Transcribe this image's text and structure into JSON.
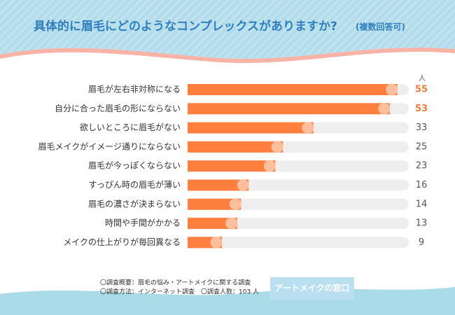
{
  "chart_data": {
    "type": "hbar",
    "title": "具体的に眉毛にどのようなコンプレックスがありますか?",
    "subtitle": "(複数回答可)",
    "unit": "人",
    "categories": [
      "眉毛が左右非対称になる",
      "自分に合った眉毛の形にならない",
      "欲しいところに眉毛がない",
      "眉毛メイクがイメージ通りにならない",
      "眉毛が今っぽくならない",
      "すっぴん時の眉毛が薄い",
      "眉毛の濃さが決まらない",
      "時間や手間がかかる",
      "メイクの仕上がりが毎回異なる"
    ],
    "values": [
      55,
      53,
      33,
      25,
      23,
      16,
      14,
      13,
      9
    ],
    "value_label_colors": [
      "#f07a3a",
      "#f07a3a",
      "#555555",
      "#555555",
      "#555555",
      "#555555",
      "#555555",
      "#555555",
      "#555555"
    ],
    "color": "#ff7f3f",
    "cap_color": "#ffbf9c",
    "track_color": "#eeeeee",
    "xlim": [
      0,
      58
    ],
    "notes": [
      "〇調査概要：眉毛の悩み・アートメイクに関する調査",
      "〇調査方法：インターネット調査　〇調査人数：103 人"
    ],
    "logo": "アートメイクの窓口"
  }
}
